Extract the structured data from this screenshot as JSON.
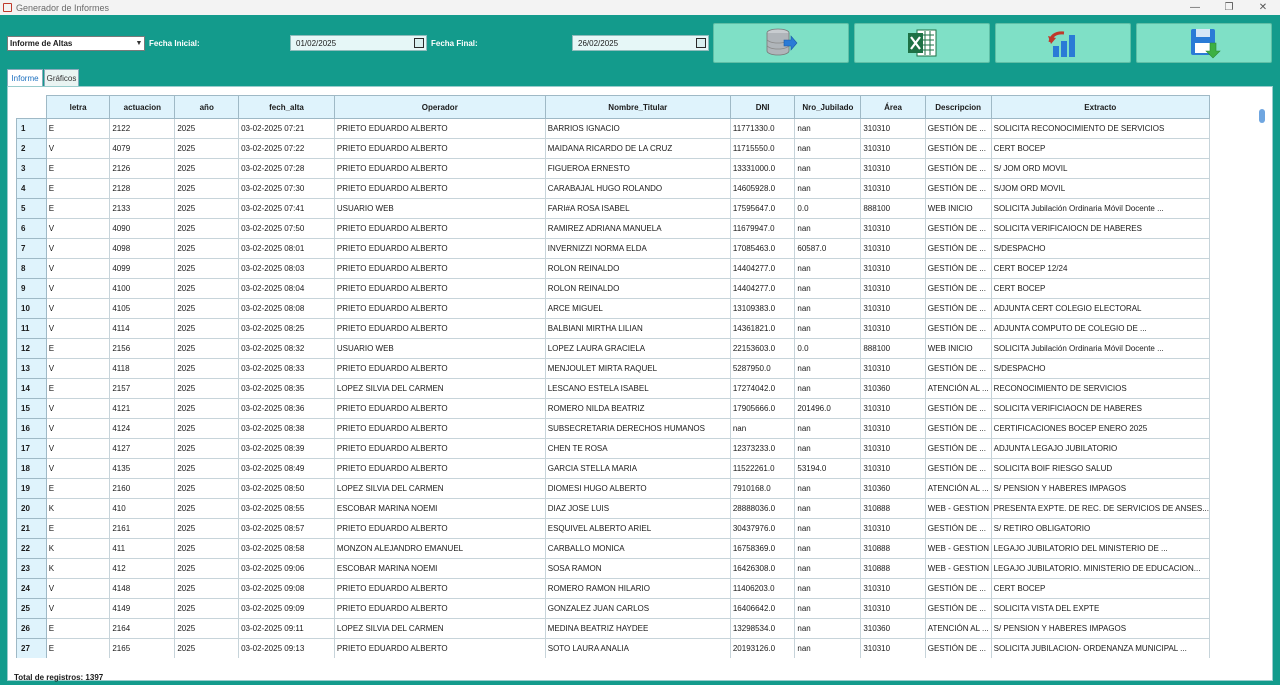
{
  "window": {
    "title": "Generador de Informes"
  },
  "toolbar": {
    "report_type": "Informe de Altas",
    "fecha_inicial_label": "Fecha Inicial:",
    "fecha_inicial_value": "01/02/2025",
    "fecha_final_label": "Fecha Final:",
    "fecha_final_value": "26/02/2025"
  },
  "tabs": [
    "Informe",
    "Gráficos"
  ],
  "table": {
    "columns": [
      "letra",
      "actuacion",
      "año",
      "fech_alta",
      "Operador",
      "Nombre_Titular",
      "DNI",
      "Nro_Jubilado",
      "Área",
      "Descripcion",
      "Extracto"
    ],
    "rows": [
      [
        "1",
        "E",
        "2122",
        "2025",
        "03-02-2025 07:21",
        "PRIETO EDUARDO ALBERTO",
        "BARRIOS IGNACIO",
        "11771330.0",
        "nan",
        "310310",
        "GESTIÓN DE ...",
        "SOLICITA RECONOCIMIENTO DE SERVICIOS"
      ],
      [
        "2",
        "V",
        "4079",
        "2025",
        "03-02-2025 07:22",
        "PRIETO EDUARDO ALBERTO",
        "MAIDANA RICARDO DE LA CRUZ",
        "11715550.0",
        "nan",
        "310310",
        "GESTIÓN DE ...",
        "CERT BOCEP"
      ],
      [
        "3",
        "E",
        "2126",
        "2025",
        "03-02-2025 07:28",
        "PRIETO EDUARDO ALBERTO",
        "FIGUEROA ERNESTO",
        "13331000.0",
        "nan",
        "310310",
        "GESTIÓN DE ...",
        "S/ JOM ORD MOVIL"
      ],
      [
        "4",
        "E",
        "2128",
        "2025",
        "03-02-2025 07:30",
        "PRIETO EDUARDO ALBERTO",
        "CARABAJAL HUGO ROLANDO",
        "14605928.0",
        "nan",
        "310310",
        "GESTIÓN DE ...",
        "S/JOM ORD MOVIL"
      ],
      [
        "5",
        "E",
        "2133",
        "2025",
        "03-02-2025 07:41",
        "USUARIO WEB",
        "FARI#A ROSA ISABEL",
        "17595647.0",
        "0.0",
        "888100",
        "WEB INICIO",
        "SOLICITA Jubilación Ordinaria Móvil Docente ..."
      ],
      [
        "6",
        "V",
        "4090",
        "2025",
        "03-02-2025 07:50",
        "PRIETO EDUARDO ALBERTO",
        "RAMIREZ ADRIANA MANUELA",
        "11679947.0",
        "nan",
        "310310",
        "GESTIÓN DE ...",
        "SOLICITA VERIFICAIOCN DE HABERES"
      ],
      [
        "7",
        "V",
        "4098",
        "2025",
        "03-02-2025 08:01",
        "PRIETO EDUARDO ALBERTO",
        "INVERNIZZI NORMA ELDA",
        "17085463.0",
        "60587.0",
        "310310",
        "GESTIÓN DE ...",
        "S/DESPACHO"
      ],
      [
        "8",
        "V",
        "4099",
        "2025",
        "03-02-2025 08:03",
        "PRIETO EDUARDO ALBERTO",
        "ROLON REINALDO",
        "14404277.0",
        "nan",
        "310310",
        "GESTIÓN DE ...",
        "CERT BOCEP 12/24"
      ],
      [
        "9",
        "V",
        "4100",
        "2025",
        "03-02-2025 08:04",
        "PRIETO EDUARDO ALBERTO",
        "ROLON REINALDO",
        "14404277.0",
        "nan",
        "310310",
        "GESTIÓN DE ...",
        "CERT BOCEP"
      ],
      [
        "10",
        "V",
        "4105",
        "2025",
        "03-02-2025 08:08",
        "PRIETO EDUARDO ALBERTO",
        "ARCE MIGUEL",
        "13109383.0",
        "nan",
        "310310",
        "GESTIÓN DE ...",
        "ADJUNTA CERT COLEGIO ELECTORAL"
      ],
      [
        "11",
        "V",
        "4114",
        "2025",
        "03-02-2025 08:25",
        "PRIETO EDUARDO ALBERTO",
        "BALBIANI MIRTHA LILIAN",
        "14361821.0",
        "nan",
        "310310",
        "GESTIÓN DE ...",
        "ADJUNTA COMPUTO DE COLEGIO DE ..."
      ],
      [
        "12",
        "E",
        "2156",
        "2025",
        "03-02-2025 08:32",
        "USUARIO WEB",
        "LOPEZ LAURA GRACIELA",
        "22153603.0",
        "0.0",
        "888100",
        "WEB INICIO",
        "SOLICITA Jubilación Ordinaria Móvil Docente ..."
      ],
      [
        "13",
        "V",
        "4118",
        "2025",
        "03-02-2025 08:33",
        "PRIETO EDUARDO ALBERTO",
        "MENJOULET MIRTA RAQUEL",
        "5287950.0",
        "nan",
        "310310",
        "GESTIÓN DE ...",
        "S/DESPACHO"
      ],
      [
        "14",
        "E",
        "2157",
        "2025",
        "03-02-2025 08:35",
        "LOPEZ SILVIA DEL CARMEN",
        "LESCANO ESTELA ISABEL",
        "17274042.0",
        "nan",
        "310360",
        "ATENCIÓN AL ...",
        "RECONOCIMIENTO DE SERVICIOS"
      ],
      [
        "15",
        "V",
        "4121",
        "2025",
        "03-02-2025 08:36",
        "PRIETO EDUARDO ALBERTO",
        "ROMERO NILDA BEATRIZ",
        "17905666.0",
        "201496.0",
        "310310",
        "GESTIÓN DE ...",
        "SOLICITA VERIFICIAOCN DE HABERES"
      ],
      [
        "16",
        "V",
        "4124",
        "2025",
        "03-02-2025 08:38",
        "PRIETO EDUARDO ALBERTO",
        "SUBSECRETARIA DERECHOS HUMANOS",
        "nan",
        "nan",
        "310310",
        "GESTIÓN DE ...",
        "CERTIFICACIONES BOCEP ENERO 2025"
      ],
      [
        "17",
        "V",
        "4127",
        "2025",
        "03-02-2025 08:39",
        "PRIETO EDUARDO ALBERTO",
        "CHEN TE ROSA",
        "12373233.0",
        "nan",
        "310310",
        "GESTIÓN DE ...",
        "ADJUNTA LEGAJO JUBILATORIO"
      ],
      [
        "18",
        "V",
        "4135",
        "2025",
        "03-02-2025 08:49",
        "PRIETO EDUARDO ALBERTO",
        "GARCIA STELLA MARIA",
        "11522261.0",
        "53194.0",
        "310310",
        "GESTIÓN DE ...",
        "SOLICITA BOIF RIESGO SALUD"
      ],
      [
        "19",
        "E",
        "2160",
        "2025",
        "03-02-2025 08:50",
        "LOPEZ SILVIA DEL CARMEN",
        "DIOMESI HUGO ALBERTO",
        "7910168.0",
        "nan",
        "310360",
        "ATENCIÓN AL ...",
        "S/ PENSION Y HABERES IMPAGOS"
      ],
      [
        "20",
        "K",
        "410",
        "2025",
        "03-02-2025 08:55",
        "ESCOBAR MARINA NOEMI",
        "DIAZ JOSE LUIS",
        "28888036.0",
        "nan",
        "310888",
        "WEB - GESTION",
        "PRESENTA EXPTE. DE REC. DE SERVICIOS DE ANSES..."
      ],
      [
        "21",
        "E",
        "2161",
        "2025",
        "03-02-2025 08:57",
        "PRIETO EDUARDO ALBERTO",
        "ESQUIVEL ALBERTO ARIEL",
        "30437976.0",
        "nan",
        "310310",
        "GESTIÓN DE ...",
        "S/ RETIRO OBLIGATORIO"
      ],
      [
        "22",
        "K",
        "411",
        "2025",
        "03-02-2025 08:58",
        "MONZON ALEJANDRO EMANUEL",
        "CARBALLO MONICA",
        "16758369.0",
        "nan",
        "310888",
        "WEB - GESTION",
        "LEGAJO JUBILATORIO DEL MINISTERIO DE ..."
      ],
      [
        "23",
        "K",
        "412",
        "2025",
        "03-02-2025 09:06",
        "ESCOBAR MARINA NOEMI",
        "SOSA RAMON",
        "16426308.0",
        "nan",
        "310888",
        "WEB - GESTION",
        "LEGAJO JUBILATORIO. MINISTERIO DE EDUCACION..."
      ],
      [
        "24",
        "V",
        "4148",
        "2025",
        "03-02-2025 09:08",
        "PRIETO EDUARDO ALBERTO",
        "ROMERO RAMON HILARIO",
        "11406203.0",
        "nan",
        "310310",
        "GESTIÓN DE ...",
        "CERT BOCEP"
      ],
      [
        "25",
        "V",
        "4149",
        "2025",
        "03-02-2025 09:09",
        "PRIETO EDUARDO ALBERTO",
        "GONZALEZ JUAN CARLOS",
        "16406642.0",
        "nan",
        "310310",
        "GESTIÓN DE ...",
        "SOLICITA VISTA DEL EXPTE"
      ],
      [
        "26",
        "E",
        "2164",
        "2025",
        "03-02-2025 09:11",
        "LOPEZ SILVIA DEL CARMEN",
        "MEDINA BEATRIZ HAYDEE",
        "13298534.0",
        "nan",
        "310360",
        "ATENCIÓN AL ...",
        "S/ PENSION Y HABERES IMPAGOS"
      ],
      [
        "27",
        "E",
        "2165",
        "2025",
        "03-02-2025 09:13",
        "PRIETO EDUARDO ALBERTO",
        "SOTO LAURA ANALIA",
        "20193126.0",
        "nan",
        "310310",
        "GESTIÓN DE ...",
        "SOLICITA JUBILACION- ORDENANZA MUNICIPAL ..."
      ]
    ]
  },
  "footer": {
    "total": "Total de registros: 1397"
  },
  "colors": {
    "teal_bg": "#139b8c",
    "button_bg": "#7fe0c6",
    "header_bg": "#dff3fc",
    "tab_active_text": "#1b6fbf"
  }
}
